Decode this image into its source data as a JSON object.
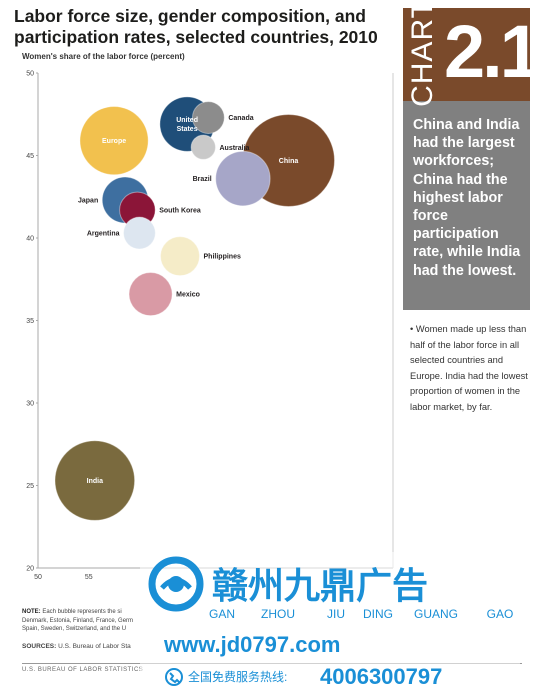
{
  "page": {
    "title": "Labor force size, gender composition, and participation rates, selected countries, 2010",
    "footer": "U.S. BUREAU OF LABOR STATISTICS"
  },
  "sidebar": {
    "chart_word": "CHART",
    "chart_number": "2.1",
    "headline": "China and India had the largest workforces; China had the highest labor force participation rate, while India had the lowest.",
    "bullet": "Women made up less than half of the labor force in all selected countries and Europe. India had the lowest proportion of women in the labor market, by far.",
    "colors": {
      "top": "#7a4a2b",
      "panel": "#808080"
    }
  },
  "notes": {
    "note_label": "NOTE:",
    "note_text": "Each bubble represents the si",
    "note_line2": "Denmark, Estonia, Finland, France, Germ",
    "note_line3": "Spain, Sweden, Switzerland, and the U",
    "sources_label": "SOURCES:",
    "sources_text": "U.S. Bureau of Labor Sta"
  },
  "watermark": {
    "cn_name": "赣州九鼎广告",
    "pinyin": [
      "GAN",
      "ZHOU",
      "JIU",
      "DING",
      "GUANG",
      "GAO"
    ],
    "url": "www.jd0797.com",
    "hotline_label": "全国免费服务热线:",
    "hotline": "4006300797"
  },
  "chart_data": {
    "type": "scatter",
    "ylabel": "Women's share of the labor force (percent)",
    "xlabel": "",
    "xlim": [
      50,
      85
    ],
    "ylim": [
      20,
      50
    ],
    "x_ticks": [
      "50",
      "55"
    ],
    "y_ticks": [
      "50",
      "45",
      "40",
      "35",
      "30",
      "25",
      "20"
    ],
    "grid": false,
    "points": [
      {
        "label": "Canada",
        "x": 66.8,
        "y": 47.3,
        "size": 0.12,
        "color": "#8c8c8c",
        "label_pos": "right"
      },
      {
        "label": "United States",
        "x": 64.7,
        "y": 46.9,
        "size": 0.35,
        "color": "#1f4e79",
        "label_pos": "center"
      },
      {
        "label": "Europe",
        "x": 57.5,
        "y": 45.9,
        "size": 0.55,
        "color": "#f2c14e",
        "label_pos": "center"
      },
      {
        "label": "Australia",
        "x": 66.3,
        "y": 45.5,
        "size": 0.07,
        "color": "#c9c9c9",
        "label_pos": "right"
      },
      {
        "label": "China",
        "x": 74.7,
        "y": 44.7,
        "size": 1.0,
        "color": "#7a4a2b",
        "label_pos": "center"
      },
      {
        "label": "Brazil",
        "x": 70.2,
        "y": 43.6,
        "size": 0.35,
        "color": "#a6a6c8",
        "label_pos": "left"
      },
      {
        "label": "Japan",
        "x": 58.6,
        "y": 42.3,
        "size": 0.25,
        "color": "#3e6fa0",
        "label_pos": "left"
      },
      {
        "label": "South Korea",
        "x": 59.8,
        "y": 41.7,
        "size": 0.15,
        "color": "#8b1538",
        "label_pos": "right"
      },
      {
        "label": "Argentina",
        "x": 60.0,
        "y": 40.3,
        "size": 0.12,
        "color": "#dde6f0",
        "label_pos": "left"
      },
      {
        "label": "Philippines",
        "x": 64.0,
        "y": 38.9,
        "size": 0.18,
        "color": "#f5ecc8",
        "label_pos": "right"
      },
      {
        "label": "Mexico",
        "x": 61.1,
        "y": 36.6,
        "size": 0.22,
        "color": "#d99aa5",
        "label_pos": "right"
      },
      {
        "label": "India",
        "x": 55.6,
        "y": 25.3,
        "size": 0.75,
        "color": "#7a6a3e",
        "label_pos": "center"
      }
    ]
  }
}
